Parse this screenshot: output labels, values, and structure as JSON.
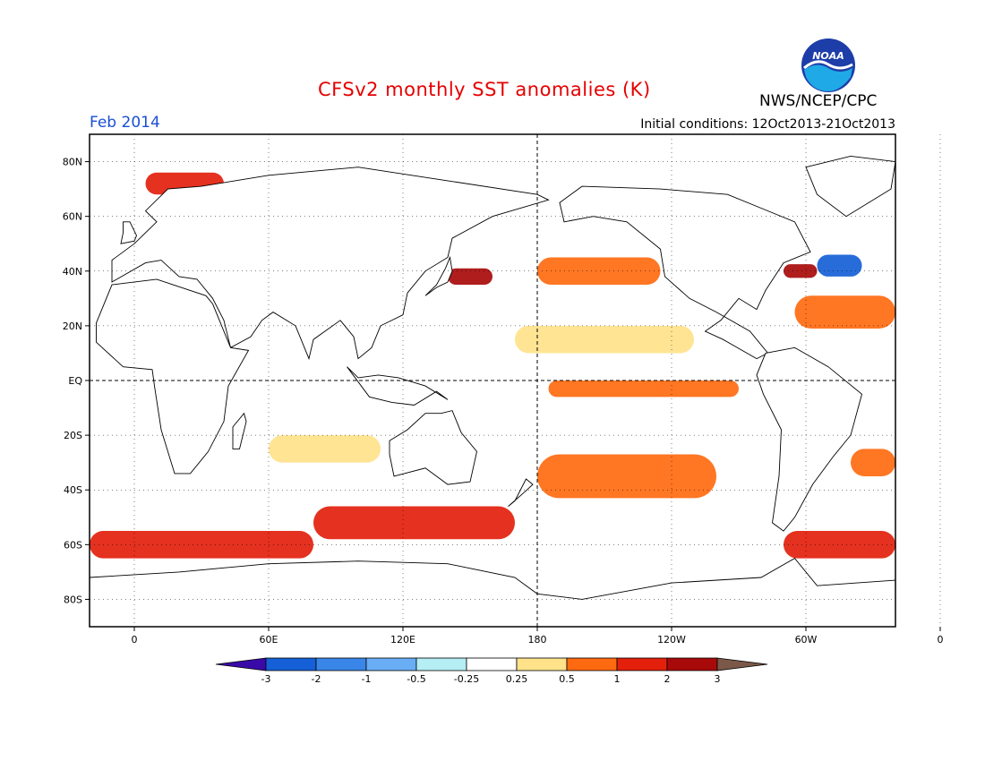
{
  "header": {
    "title": "CFSv2 monthly SST anomalies (K)",
    "agency": "NWS/NCEP/CPC",
    "logo_text": "NOAA",
    "month": "Feb 2014",
    "initial_conditions": "Initial conditions: 12Oct2013-21Oct2013"
  },
  "map": {
    "projection": "equirectangular",
    "lon_range": [
      -20,
      340
    ],
    "lat_range": [
      -90,
      90
    ],
    "lat_ticks": [
      {
        "label": "80N",
        "lat": 80
      },
      {
        "label": "60N",
        "lat": 60
      },
      {
        "label": "40N",
        "lat": 40
      },
      {
        "label": "20N",
        "lat": 20
      },
      {
        "label": "EQ",
        "lat": 0
      },
      {
        "label": "20S",
        "lat": -20
      },
      {
        "label": "40S",
        "lat": -40
      },
      {
        "label": "60S",
        "lat": -60
      },
      {
        "label": "80S",
        "lat": -80
      }
    ],
    "lon_ticks": [
      {
        "label": "0",
        "lon": 0
      },
      {
        "label": "60E",
        "lon": 60
      },
      {
        "label": "120E",
        "lon": 120
      },
      {
        "label": "180",
        "lon": 180
      },
      {
        "label": "120W",
        "lon": 240
      },
      {
        "label": "60W",
        "lon": 300
      },
      {
        "label": "0",
        "lon": 360
      }
    ],
    "colors": {
      "land": "#ffffff",
      "coast": "#000000",
      "frame": "#000000"
    }
  },
  "colorbar": {
    "labels": [
      "-3",
      "-2",
      "-1",
      "-0.5",
      "-0.25",
      "0.25",
      "0.5",
      "1",
      "2",
      "3"
    ],
    "colors": [
      "#3a0aa8",
      "#1560d6",
      "#3a86e8",
      "#69aef5",
      "#b5eef5",
      "#ffffff",
      "#ffe28a",
      "#ff6a10",
      "#e3200c",
      "#a80a0a",
      "#7b5848"
    ]
  },
  "anomalies": [
    {
      "name": "southern-ocean-band-west",
      "lat": -60,
      "lon1": -20,
      "lon2": 80,
      "h": 10,
      "value": 1.2
    },
    {
      "name": "southern-ocean-band-central",
      "lat": -52,
      "lon1": 80,
      "lon2": 170,
      "h": 12,
      "value": 1.1
    },
    {
      "name": "southern-ocean-band-east",
      "lat": -60,
      "lon1": 290,
      "lon2": 340,
      "h": 10,
      "value": 1.3
    },
    {
      "name": "south-pacific-warm",
      "lat": -35,
      "lon1": 180,
      "lon2": 260,
      "h": 16,
      "value": 0.8
    },
    {
      "name": "north-pacific-warm",
      "lat": 40,
      "lon1": 180,
      "lon2": 235,
      "h": 10,
      "value": 0.7
    },
    {
      "name": "kuroshio-warm",
      "lat": 38,
      "lon1": 140,
      "lon2": 160,
      "h": 6,
      "value": 2.2
    },
    {
      "name": "north-atlantic-cold",
      "lat": 42,
      "lon1": 305,
      "lon2": 325,
      "h": 8,
      "value": -2.2
    },
    {
      "name": "gulf-stream-warm",
      "lat": 40,
      "lon1": 290,
      "lon2": 305,
      "h": 5,
      "value": 2.0
    },
    {
      "name": "subtropical-atlantic-warm",
      "lat": 25,
      "lon1": 295,
      "lon2": 340,
      "h": 12,
      "value": 0.9
    },
    {
      "name": "equatorial-pacific-warm",
      "lat": -3,
      "lon1": 185,
      "lon2": 270,
      "h": 6,
      "value": 0.6
    },
    {
      "name": "tropical-pacific-weak",
      "lat": 15,
      "lon1": 170,
      "lon2": 250,
      "h": 10,
      "value": 0.4
    },
    {
      "name": "barents-sea-warm",
      "lat": 72,
      "lon1": 5,
      "lon2": 40,
      "h": 8,
      "value": 1.4
    },
    {
      "name": "south-atlantic-warm",
      "lat": -30,
      "lon1": 320,
      "lon2": 340,
      "h": 10,
      "value": 0.8
    },
    {
      "name": "indian-ocean-warm",
      "lat": -25,
      "lon1": 60,
      "lon2": 110,
      "h": 10,
      "value": 0.4
    }
  ]
}
